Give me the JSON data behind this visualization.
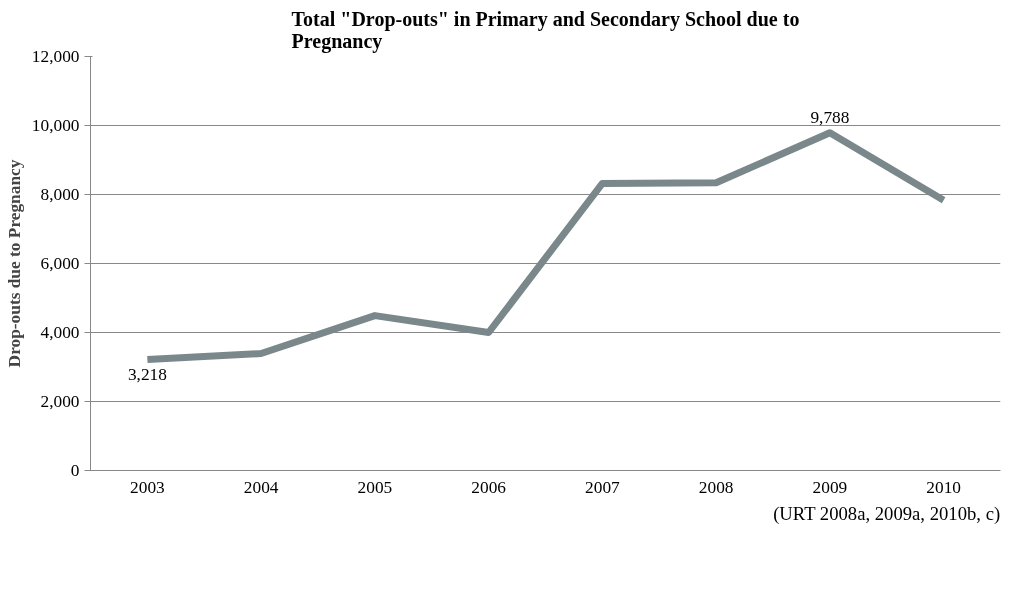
{
  "chart_data": {
    "type": "line",
    "title": "Total \"Drop-outs\" in Primary and Secondary School due to Pregnancy",
    "ylabel": "Drop-outs due to Pregnancy",
    "categories": [
      "2003",
      "2004",
      "2005",
      "2006",
      "2007",
      "2008",
      "2009",
      "2010"
    ],
    "series": [
      {
        "color": "#7a888c",
        "values": [
          3218,
          3390,
          4490,
          4000,
          8320,
          8340,
          9788,
          7830
        ],
        "value_labels": [
          "3,218",
          null,
          null,
          null,
          null,
          null,
          "9,788",
          null
        ]
      }
    ],
    "ylim": [
      0,
      12000
    ],
    "yticks": [
      {
        "value": 0,
        "label": "0"
      },
      {
        "value": 2000,
        "label": "2,000"
      },
      {
        "value": 4000,
        "label": "4,000"
      },
      {
        "value": 6000,
        "label": "6,000"
      },
      {
        "value": 8000,
        "label": "8,000"
      },
      {
        "value": 10000,
        "label": "10,000"
      },
      {
        "value": 12000,
        "label": "12,000"
      }
    ],
    "grid": "y",
    "marker": "none",
    "line_style": "solid",
    "annotations": [
      "(URT 2008a, 2009a, 2010b, c)"
    ]
  }
}
